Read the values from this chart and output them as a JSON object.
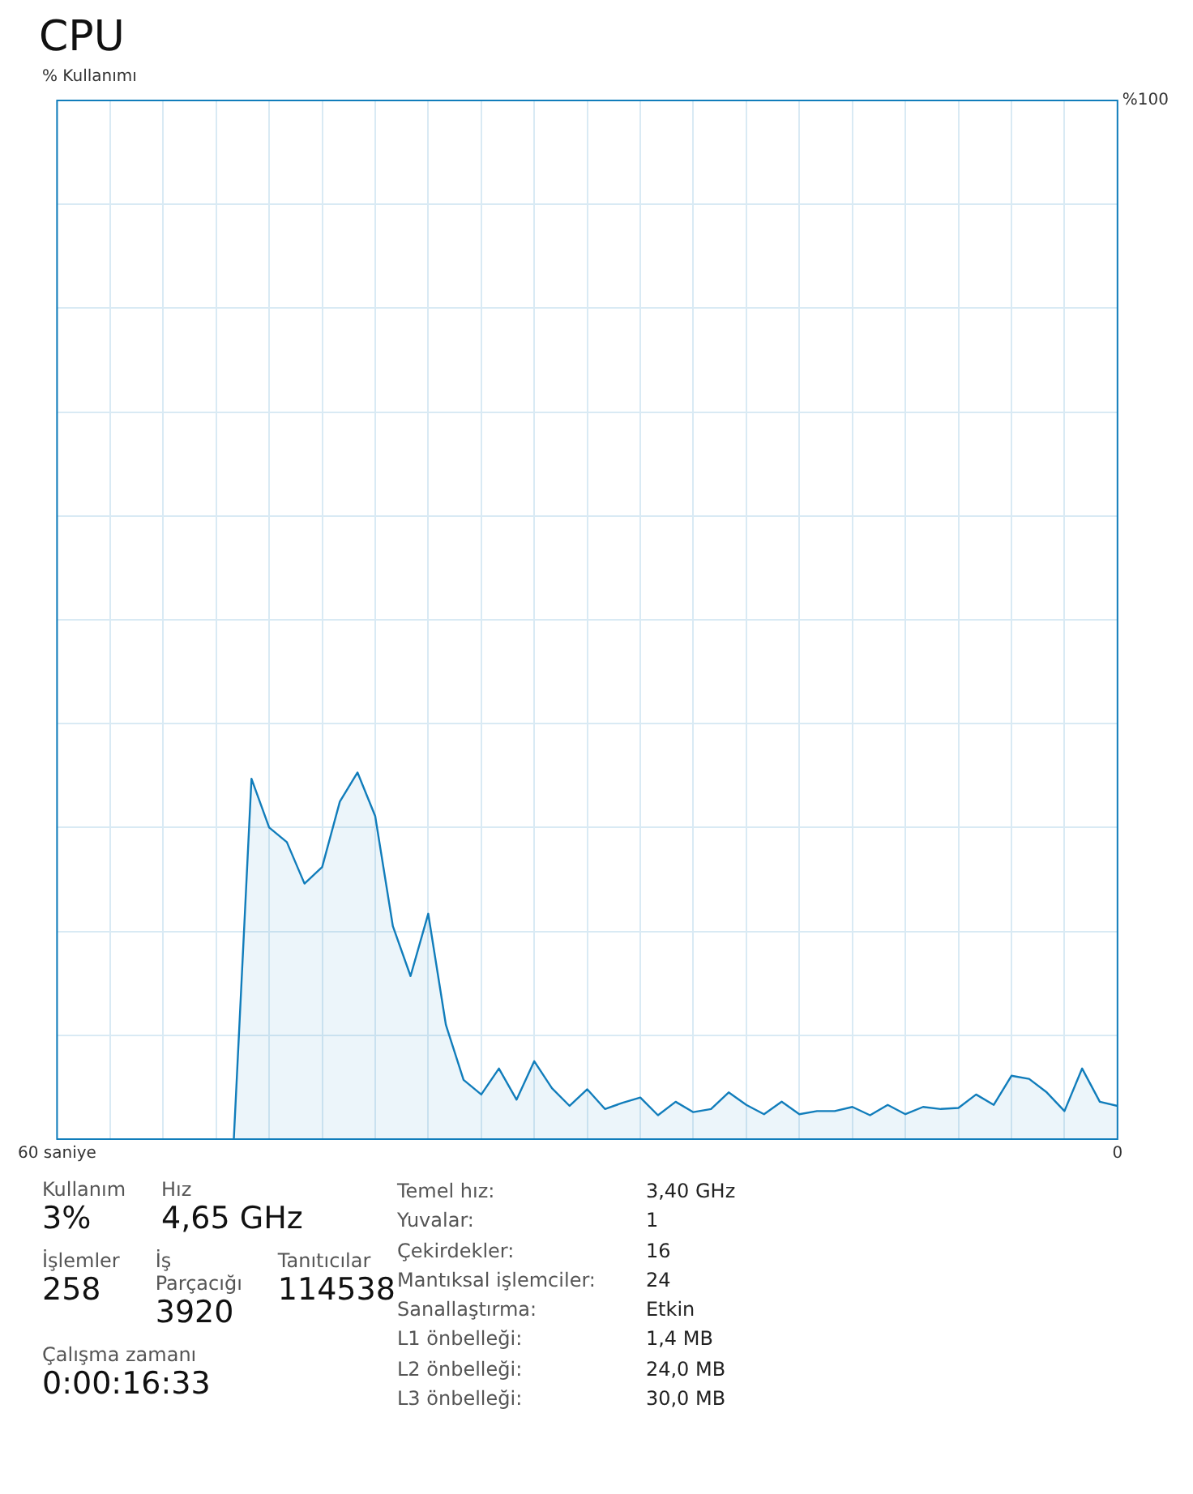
{
  "chart_data": {
    "type": "area",
    "title": "CPU",
    "ylabel": "% Kullanımı",
    "x": [
      50,
      49,
      48,
      47,
      46,
      45,
      44,
      43,
      42,
      41,
      40,
      39,
      38,
      37,
      36,
      35,
      34,
      33,
      32,
      31,
      30,
      29,
      28,
      27,
      26,
      25,
      24,
      23,
      22,
      21,
      20,
      19,
      18,
      17,
      16,
      15,
      14,
      13,
      12,
      11,
      10,
      9,
      8,
      7,
      6,
      5,
      4,
      3,
      2,
      1,
      0
    ],
    "series": [
      {
        "color": "#117dbb",
        "values": [
          0,
          34.7,
          30.0,
          28.6,
          24.6,
          26.2,
          32.5,
          35.3,
          31.1,
          20.5,
          15.7,
          21.7,
          11.0,
          5.7,
          4.3,
          6.8,
          3.8,
          7.5,
          4.9,
          3.2,
          4.8,
          2.9,
          3.5,
          4.0,
          2.3,
          3.6,
          2.6,
          2.9,
          4.5,
          3.3,
          2.4,
          3.6,
          2.4,
          2.7,
          2.7,
          3.1,
          2.3,
          3.3,
          2.4,
          3.1,
          2.9,
          3.0,
          4.3,
          3.3,
          6.1,
          5.8,
          4.5,
          2.7,
          6.8,
          3.6,
          3.2
        ]
      }
    ],
    "xlim": [
      60,
      0
    ],
    "xticks": [
      {
        "value": 60,
        "label": "60 saniye"
      },
      {
        "value": 57,
        "label": null
      },
      {
        "value": 54,
        "label": null
      },
      {
        "value": 51,
        "label": null
      },
      {
        "value": 48,
        "label": null
      },
      {
        "value": 45,
        "label": null
      },
      {
        "value": 42,
        "label": null
      },
      {
        "value": 39,
        "label": null
      },
      {
        "value": 36,
        "label": null
      },
      {
        "value": 33,
        "label": null
      },
      {
        "value": 30,
        "label": null
      },
      {
        "value": 27,
        "label": null
      },
      {
        "value": 24,
        "label": null
      },
      {
        "value": 21,
        "label": null
      },
      {
        "value": 18,
        "label": null
      },
      {
        "value": 15,
        "label": null
      },
      {
        "value": 12,
        "label": null
      },
      {
        "value": 9,
        "label": null
      },
      {
        "value": 6,
        "label": null
      },
      {
        "value": 3,
        "label": null
      },
      0
    ],
    "ylim": [
      0,
      100
    ],
    "yticks": [
      {
        "value": 0,
        "label": null
      },
      {
        "value": 10,
        "label": null
      },
      {
        "value": 20,
        "label": null
      },
      {
        "value": 30,
        "label": null
      },
      {
        "value": 40,
        "label": null
      },
      {
        "value": 50,
        "label": null
      },
      {
        "value": 60,
        "label": null
      },
      {
        "value": 70,
        "label": null
      },
      {
        "value": 80,
        "label": null
      },
      {
        "value": 90,
        "label": null
      },
      {
        "value": 100,
        "label": "%100"
      }
    ],
    "grid": true,
    "legend": false,
    "marker": "none",
    "line_style": "solid",
    "annotations": [
      "Kullanım",
      "3%",
      "Hız",
      "4,65 GHz",
      "İşlemler",
      "258",
      "İş Parçacığı",
      "3920",
      "Tanıtıcılar",
      "114538",
      "Çalışma zamanı",
      "0:00:16:33",
      "Temel hız:",
      "3,40 GHz",
      "Yuvalar:",
      "1",
      "Çekirdekler:",
      "16",
      "Mantıksal işlemciler:",
      "24",
      "Sanallaştırma:",
      "Etkin",
      "L1 önbelleği:",
      "1,4 MB",
      "L2 önbelleği:",
      "24,0 MB",
      "L3 önbelleği:",
      "30,0 MB"
    ]
  }
}
